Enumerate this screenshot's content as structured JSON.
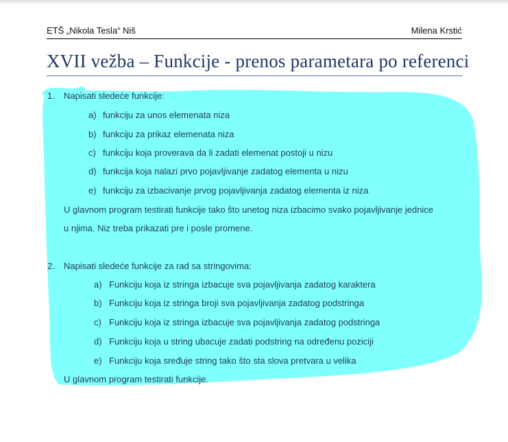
{
  "header": {
    "left": "ETŠ „Nikola Tesla“ Niš",
    "right": "Milena Krstić"
  },
  "title": "XVII vežba – Funkcije - prenos parametara po referenci",
  "tasks": [
    {
      "number": "1.",
      "intro": "Napisati sledeće funkcije:",
      "items": [
        {
          "letter": "a)",
          "text": "funkciju za unos elemenata niza"
        },
        {
          "letter": "b)",
          "text": "funkciju za prikaz elemenata niza"
        },
        {
          "letter": "c)",
          "text": "funkciju koja proverava da li zadati elemenat postoji u nizu"
        },
        {
          "letter": "d)",
          "text": "funkcija koja nalazi prvo pojavljivanje zadatog elementa u nizu"
        },
        {
          "letter": "e)",
          "text": "funkciju za izbacivanje prvog pojavljivanja zadatog elementa iz niza"
        }
      ],
      "outro_line1": "U glavnom program testirati funkcije tako što unetog niza izbacimo svako pojavljivanje jednice",
      "outro_line2": "u njima. Niz treba prikazati pre i posle promene."
    },
    {
      "number": "2.",
      "intro": "Napisati sledeće funkcije za rad sa stringovima:",
      "items": [
        {
          "letter": "a)",
          "text": "Funkciju koja iz stringa izbacuje sva pojavljivanja zadatog karaktera"
        },
        {
          "letter": "b)",
          "text": "Funkciju koja iz stringa broji sva pojavljivanja zadatog podstringa"
        },
        {
          "letter": "c)",
          "text": "Funkciju koja iz stringa izbacuje sva pojavljivanja zadatog podstringa"
        },
        {
          "letter": "d)",
          "text": "Funkciju koja u string ubacuje zadati podstring na određenu poziciji"
        },
        {
          "letter": "e)",
          "text": "Funkciju koja sređuje string tako što sta slova pretvara u velika"
        }
      ],
      "outro_line1": "U glavnom program testirati funkcije."
    }
  ],
  "colors": {
    "highlight": "#80ffff",
    "title": "#1f3763",
    "title_rule": "#4472c4",
    "body_text": "#1e3a5a"
  }
}
